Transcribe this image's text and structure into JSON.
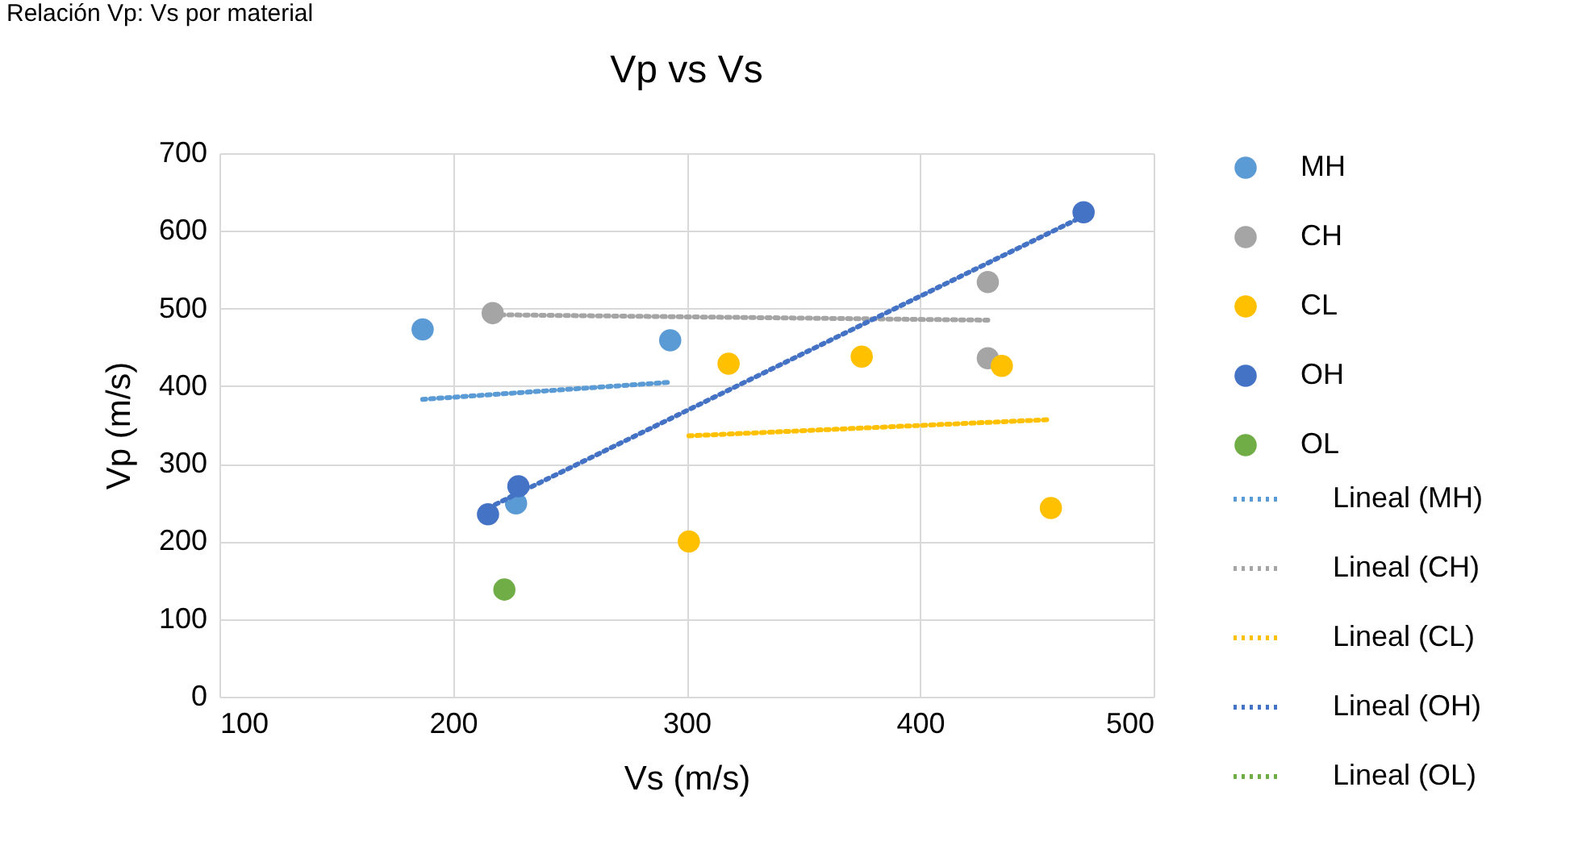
{
  "chart_data": {
    "type": "scatter",
    "title": "Vp vs Vs",
    "xlabel": "Vs (m/s)",
    "ylabel": "Vp (m/s)",
    "annotations": [
      "Relación Vp: Vs por material"
    ],
    "xlim": [
      100,
      500
    ],
    "xticks": [
      100,
      200,
      300,
      400,
      500
    ],
    "ylim": [
      0,
      700
    ],
    "yticks": [
      0,
      100,
      200,
      300,
      400,
      500,
      600,
      700
    ],
    "grid": true,
    "legend": "right",
    "series": [
      {
        "name": "MH",
        "marker": "circle",
        "color": "#5b9bd5",
        "x": [
          187,
          293,
          227
        ],
        "values": [
          473,
          459,
          249
        ]
      },
      {
        "name": "CH",
        "marker": "circle",
        "color": "#a5a5a5",
        "x": [
          217,
          429,
          429
        ],
        "values": [
          494,
          534,
          436
        ]
      },
      {
        "name": "CL",
        "marker": "circle",
        "color": "#ffc000",
        "x": [
          301,
          318,
          375,
          435,
          456
        ],
        "values": [
          200,
          429,
          438,
          426,
          243
        ]
      },
      {
        "name": "OH",
        "marker": "circle",
        "color": "#4472c4",
        "x": [
          215,
          228,
          470
        ],
        "values": [
          235,
          271,
          624
        ]
      },
      {
        "name": "OL",
        "marker": "circle",
        "color": "#70ad47",
        "x": [
          222
        ],
        "values": [
          138
        ]
      },
      {
        "name": "Lineal (MH)",
        "type": "line",
        "line_style": "dotted",
        "marker": "none",
        "color": "#5b9bd5",
        "x": [
          187,
          293
        ],
        "values": [
          383,
          405
        ]
      },
      {
        "name": "Lineal (CH)",
        "type": "line",
        "line_style": "dotted",
        "marker": "none",
        "color": "#a5a5a5",
        "x": [
          217,
          429
        ],
        "values": [
          492,
          485
        ]
      },
      {
        "name": "Lineal (CL)",
        "type": "line",
        "line_style": "dotted",
        "marker": "none",
        "color": "#ffc000",
        "x": [
          301,
          456
        ],
        "values": [
          336,
          357
        ]
      },
      {
        "name": "Lineal (OH)",
        "type": "line",
        "line_style": "dotted",
        "marker": "none",
        "color": "#4472c4",
        "x": [
          215,
          470
        ],
        "values": [
          243,
          619
        ]
      },
      {
        "name": "Lineal (OL)",
        "type": "line",
        "line_style": "dotted",
        "color": "#70ad47"
      }
    ]
  }
}
